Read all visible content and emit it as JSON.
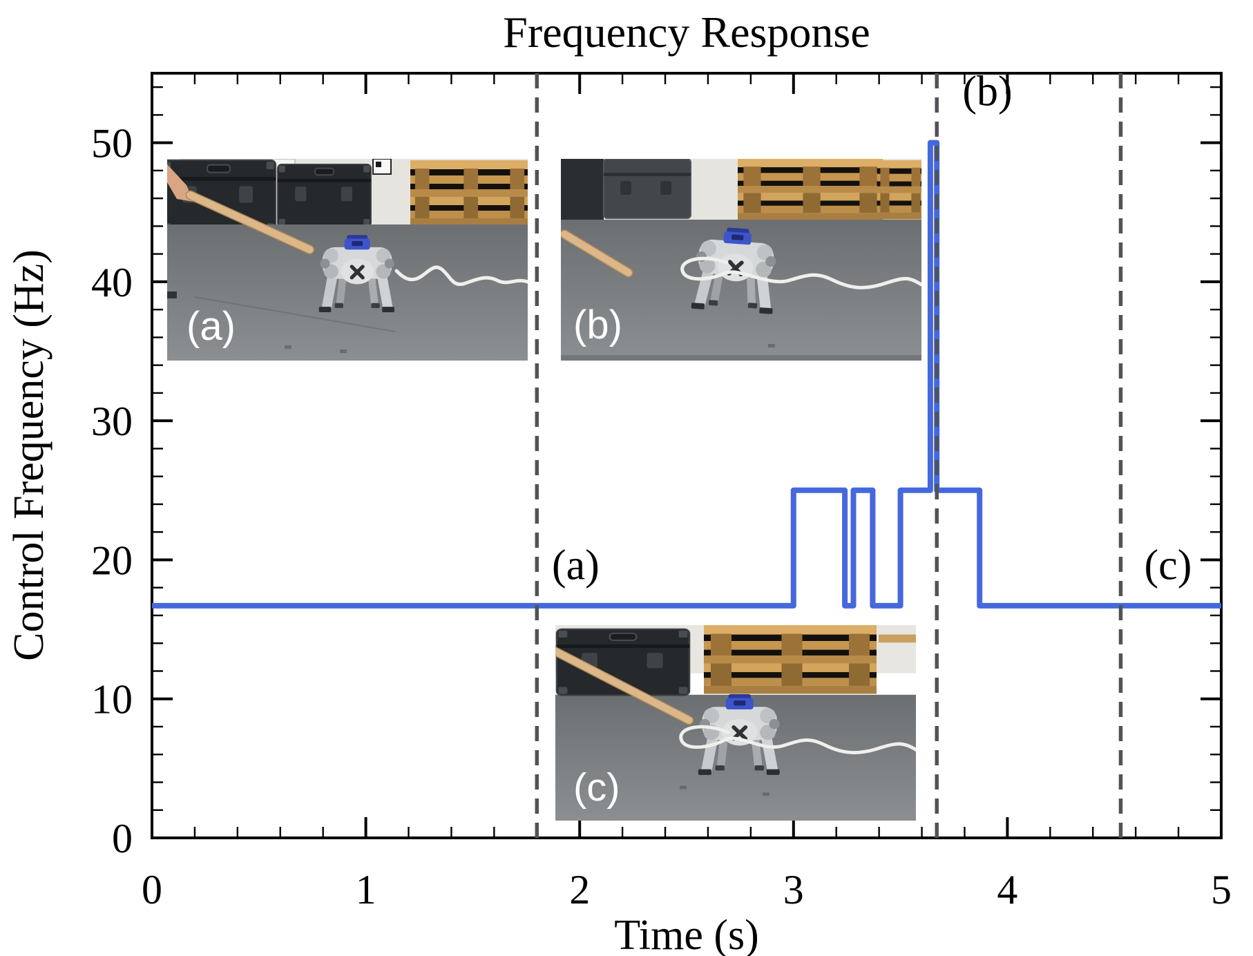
{
  "page": {
    "background": "#ffffff"
  },
  "figure": {
    "title": "Frequency Response",
    "x_axis": {
      "label": "Time (s)",
      "tick_labels": [
        "0",
        "1",
        "2",
        "3",
        "4",
        "5"
      ]
    },
    "y_axis": {
      "label": "Control Frequency (Hz)",
      "tick_labels": [
        "0",
        "10",
        "20",
        "30",
        "40",
        "50"
      ]
    }
  },
  "chart_data": {
    "type": "line",
    "subtype": "step",
    "title": "Frequency Response",
    "xlabel": "Time (s)",
    "ylabel": "Control Frequency (Hz)",
    "xlim": [
      0,
      5
    ],
    "ylim": [
      0,
      55
    ],
    "x_major_ticks": [
      0,
      1,
      2,
      3,
      4,
      5
    ],
    "y_major_ticks": [
      0,
      10,
      20,
      30,
      40,
      50
    ],
    "x_minor_step": 0.2,
    "y_minor_step": 2,
    "grid": false,
    "legend": null,
    "line_color": "#4568dc",
    "vline_color": "#515457",
    "series": [
      {
        "name": "control_frequency_hz",
        "baseline_hz": 16.7,
        "elevated_hz": 25,
        "peak_hz": 50,
        "step_points": [
          [
            0,
            16.7
          ],
          [
            3.0,
            16.7
          ],
          [
            3.0,
            25
          ],
          [
            3.24,
            25
          ],
          [
            3.24,
            16.7
          ],
          [
            3.28,
            16.7
          ],
          [
            3.28,
            25
          ],
          [
            3.37,
            25
          ],
          [
            3.37,
            16.7
          ],
          [
            3.5,
            16.7
          ],
          [
            3.5,
            25
          ],
          [
            3.64,
            25
          ],
          [
            3.64,
            50
          ],
          [
            3.67,
            50
          ],
          [
            3.67,
            25
          ],
          [
            3.87,
            25
          ],
          [
            3.87,
            16.7
          ],
          [
            5,
            16.7
          ]
        ]
      }
    ],
    "event_lines": [
      {
        "x": 1.8,
        "label": "(a)",
        "label_x": 1.87,
        "label_y": 18.6
      },
      {
        "x": 3.67,
        "label": "(b)",
        "label_x": 3.79,
        "label_y": 52.7
      },
      {
        "x": 4.53,
        "label": "(c)",
        "label_x": 4.64,
        "label_y": 18.6
      }
    ],
    "insets": [
      {
        "label": "(a)",
        "description": "hand pokes robot dog with wooden stick"
      },
      {
        "label": "(b)",
        "description": "stick released, robot dog staggers"
      },
      {
        "label": "(c)",
        "description": "robot dog recovered, stick falling away"
      }
    ]
  }
}
